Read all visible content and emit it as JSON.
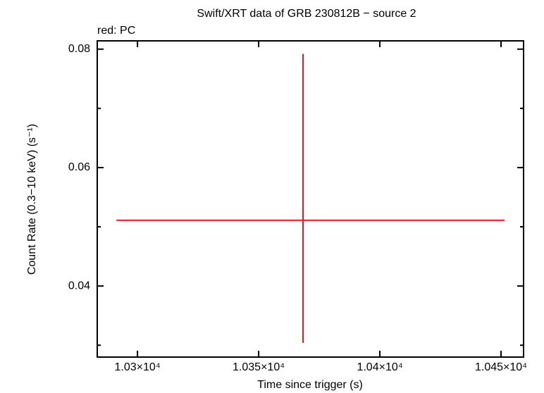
{
  "chart_data": {
    "type": "errorbar",
    "title": "Swift/XRT data of GRB 230812B − source 2",
    "subtitle": "red: PC",
    "x_label": "Time since trigger (s)",
    "y_label": "Count Rate (0.3−10 keV) (s⁻¹)",
    "series": [
      {
        "color": "#e8141e",
        "x": [
          10368.3
        ],
        "values": [
          0.0511
        ],
        "xerr_minus": [
          77
        ],
        "xerr_plus": [
          83.2
        ],
        "yerr_minus": [
          0.0207
        ],
        "yerr_plus": [
          0.0281
        ]
      }
    ],
    "xlim": [
      10283.4,
      10459.3
    ],
    "ylim": [
      0.028,
      0.0814
    ],
    "xticks": [
      {
        "value": 10300,
        "label": "1.03×10⁴"
      },
      {
        "value": 10350,
        "label": "1.035×10⁴"
      },
      {
        "value": 10400,
        "label": "1.04×10⁴"
      },
      {
        "value": 10450,
        "label": "1.045×10⁴"
      }
    ],
    "yticks": [
      0.04,
      0.06,
      0.08
    ],
    "yminorticks": [
      0.03,
      0.05,
      0.07
    ]
  }
}
